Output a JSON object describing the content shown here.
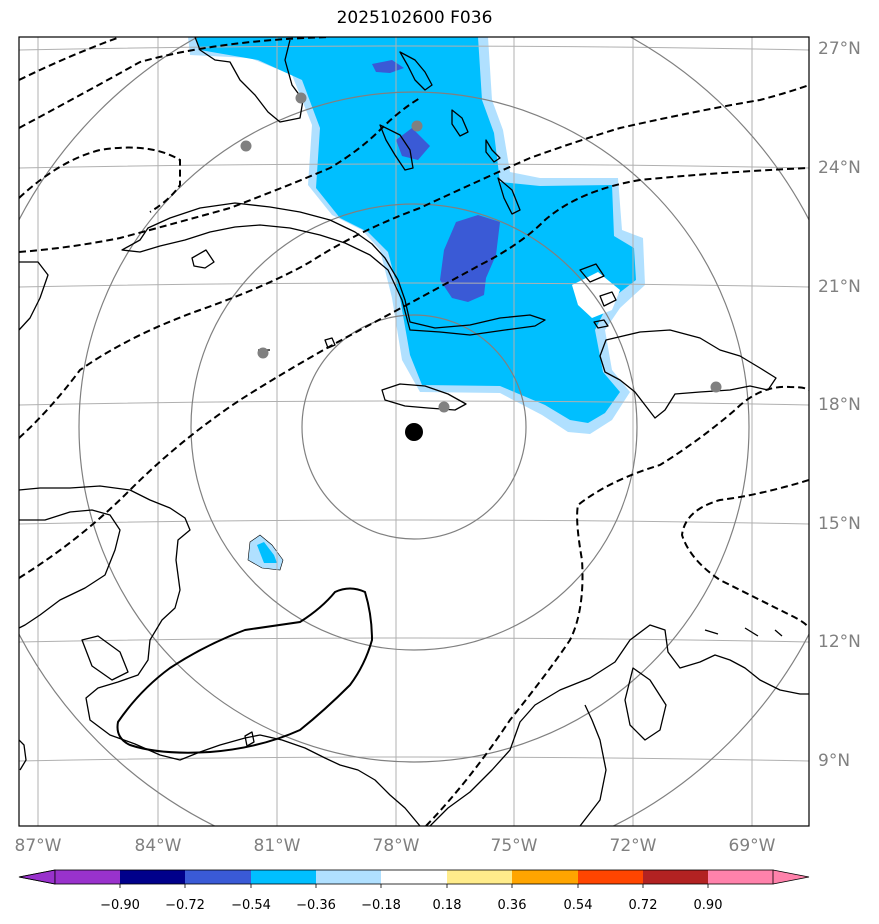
{
  "title": "2025102600 F036",
  "map": {
    "lon_ticks": [
      "87°W",
      "84°W",
      "81°W",
      "78°W",
      "75°W",
      "72°W",
      "69°W"
    ],
    "lat_ticks": [
      "27°N",
      "24°N",
      "21°N",
      "18°N",
      "15°N",
      "12°N",
      "9°N"
    ],
    "range_rings": 4,
    "storm_center_marker": "black-dot",
    "station_marker_color": "#808080"
  },
  "colorbar": {
    "labels": [
      "−0.90",
      "−0.72",
      "−0.54",
      "−0.36",
      "−0.18",
      "0.18",
      "0.36",
      "0.54",
      "0.72",
      "0.90"
    ],
    "colors": [
      "#9932cc",
      "#00008b",
      "#3a5ad6",
      "#00bfff",
      "#b0e0ff",
      "#ffffff",
      "#ffec8b",
      "#ffa500",
      "#ff4500",
      "#b22222",
      "#ff82ab"
    ],
    "extend": "both"
  },
  "shading_colors": {
    "light": "#b0e0ff",
    "mid": "#00bfff",
    "dark": "#3a5ad6"
  }
}
